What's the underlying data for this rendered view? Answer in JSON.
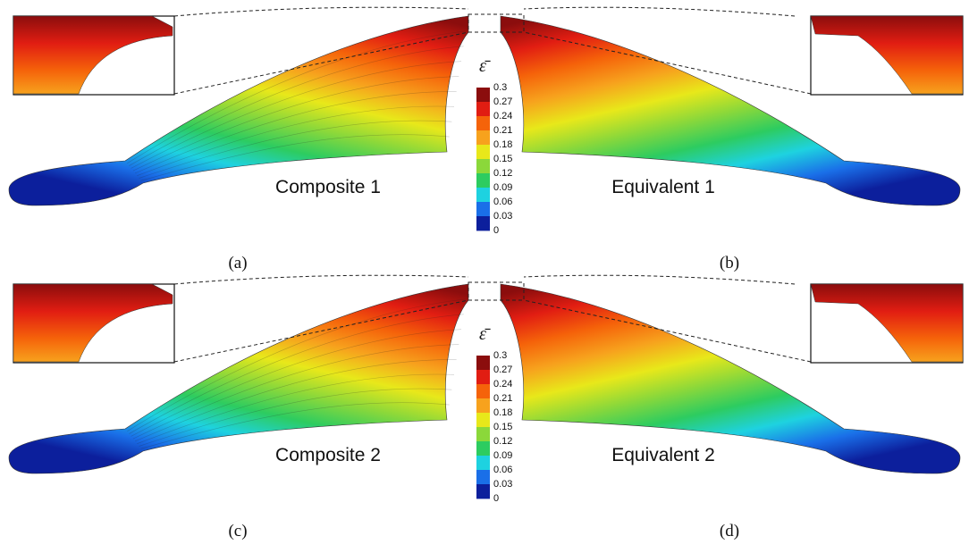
{
  "rows": [
    {
      "panels": [
        {
          "caption": "Composite 1",
          "label": "(a)"
        },
        {
          "caption": "Equivalent 1",
          "label": "(b)"
        }
      ]
    },
    {
      "panels": [
        {
          "caption": "Composite 2",
          "label": "(c)"
        },
        {
          "caption": "Equivalent 2",
          "label": "(d)"
        }
      ]
    }
  ],
  "colorbar": {
    "symbol": "ε̄",
    "ticks": [
      "0.3",
      "0.27",
      "0.24",
      "0.21",
      "0.18",
      "0.15",
      "0.12",
      "0.09",
      "0.06",
      "0.03",
      "0"
    ],
    "colors": [
      "#8b0d0d",
      "#e11d12",
      "#f5630a",
      "#f7a21d",
      "#e8e81a",
      "#8bd83a",
      "#2dcc60",
      "#1ed2e0",
      "#1a6fe8",
      "#0c1f9c"
    ]
  }
}
